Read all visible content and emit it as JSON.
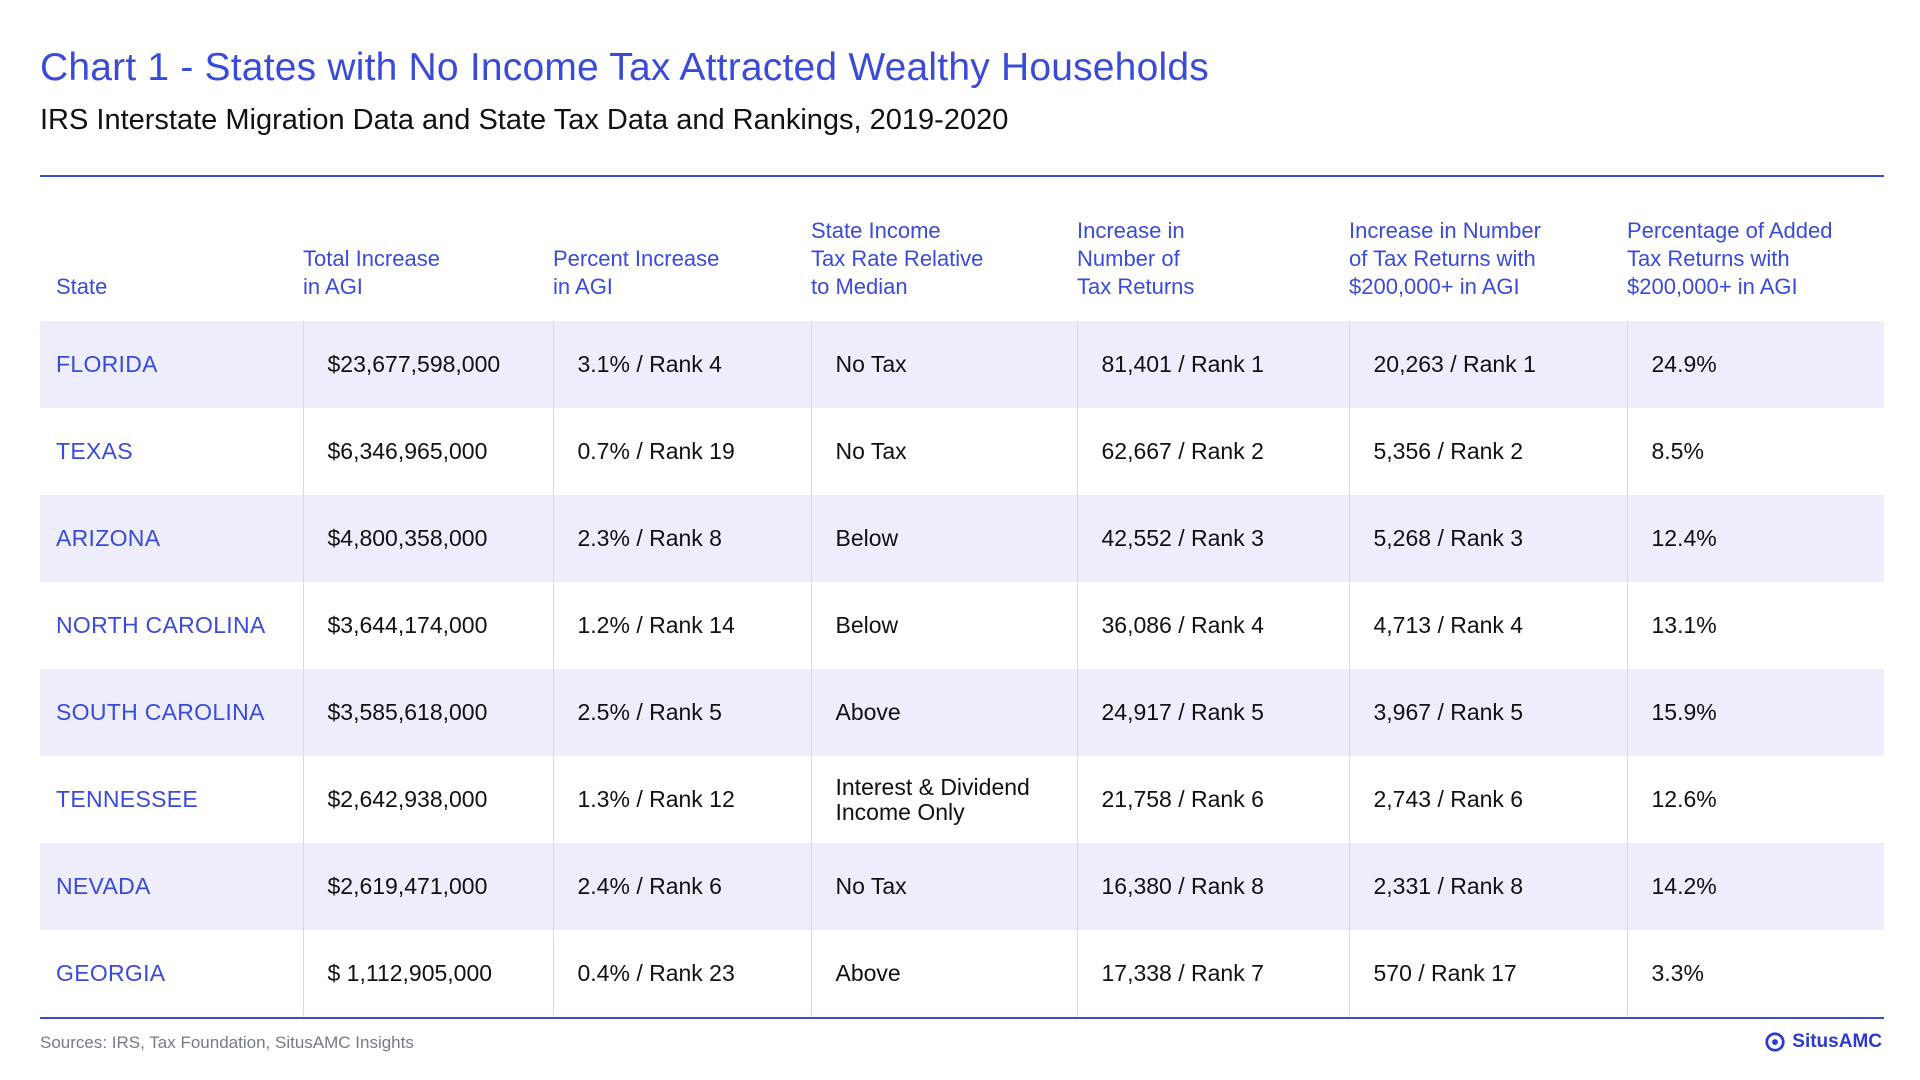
{
  "title": "Chart 1 - States with No Income Tax Attracted Wealthy Households",
  "subtitle": "IRS Interstate Migration Data and State Tax Data and Rankings, 2019-2020",
  "colors": {
    "accent": "#3a4bd9",
    "row_shade": "#ededfb",
    "source_text": "#777a85"
  },
  "chart_data": {
    "type": "table",
    "columns": [
      "State",
      "Total Increase\nin AGI",
      "Percent Increase\nin AGI",
      "State Income\nTax Rate Relative\nto Median",
      "Increase in\nNumber of\nTax Returns",
      "Increase in Number\nof Tax Returns with\n$200,000+ in AGI",
      "Percentage of Added\nTax Returns with\n$200,000+ in AGI"
    ],
    "rows": [
      [
        "FLORIDA",
        "$23,677,598,000",
        "3.1% / Rank 4",
        "No Tax",
        "81,401 / Rank 1",
        "20,263 / Rank 1",
        "24.9%"
      ],
      [
        "TEXAS",
        "$6,346,965,000",
        "0.7% / Rank 19",
        "No Tax",
        "62,667 / Rank 2",
        "5,356 / Rank 2",
        "8.5%"
      ],
      [
        "ARIZONA",
        "$4,800,358,000",
        "2.3% / Rank 8",
        "Below",
        "42,552 / Rank 3",
        "5,268 / Rank 3",
        "12.4%"
      ],
      [
        "NORTH CAROLINA",
        "$3,644,174,000",
        "1.2%  / Rank 14",
        "Below",
        "36,086 / Rank 4",
        "4,713 / Rank 4",
        "13.1%"
      ],
      [
        "SOUTH CAROLINA",
        "$3,585,618,000",
        "2.5% / Rank 5",
        "Above",
        "24,917 / Rank 5",
        "3,967 / Rank 5",
        "15.9%"
      ],
      [
        "TENNESSEE",
        "$2,642,938,000",
        "1.3% / Rank 12",
        "Interest & Dividend\nIncome Only",
        "21,758 / Rank 6",
        "2,743 / Rank 6",
        "12.6%"
      ],
      [
        "NEVADA",
        "$2,619,471,000",
        "2.4% / Rank 6",
        "No Tax",
        "16,380 / Rank 8",
        "2,331 / Rank 8",
        "14.2%"
      ],
      [
        "GEORGIA",
        "$ 1,112,905,000",
        "0.4% / Rank 23",
        "Above",
        "17,338 / Rank 7",
        "570 / Rank 17",
        "3.3%"
      ]
    ]
  },
  "footer": {
    "source": "Sources: IRS, Tax Foundation, SitusAMC Insights",
    "brand": "SitusAMC",
    "brand_icon": "situsamc-logo-icon"
  }
}
